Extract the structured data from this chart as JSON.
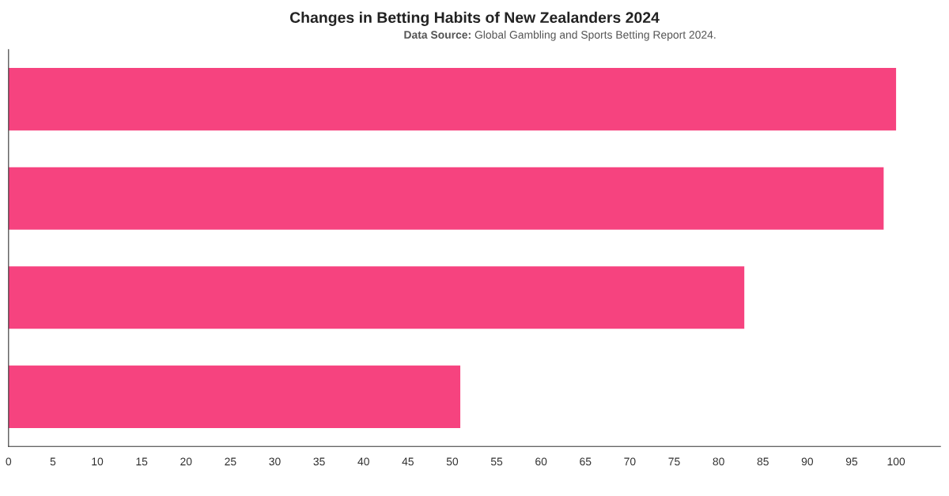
{
  "chart_data": {
    "type": "bar",
    "orientation": "horizontal",
    "title": "Changes in Betting Habits of New Zealanders 2024",
    "subtitle": "Data Source: Global Gambling and Sports Betting Report 2024.",
    "categories": [
      null,
      null,
      null,
      null
    ],
    "values": [
      100,
      98.6,
      82.9,
      50.9
    ],
    "color": "#f6437f",
    "xlim": [
      0,
      105
    ],
    "xticks": [
      0,
      5,
      10,
      15,
      20,
      25,
      30,
      35,
      40,
      45,
      50,
      55,
      60,
      65,
      70,
      75,
      80,
      85,
      90,
      95,
      100
    ],
    "grid": false,
    "legend": false
  }
}
